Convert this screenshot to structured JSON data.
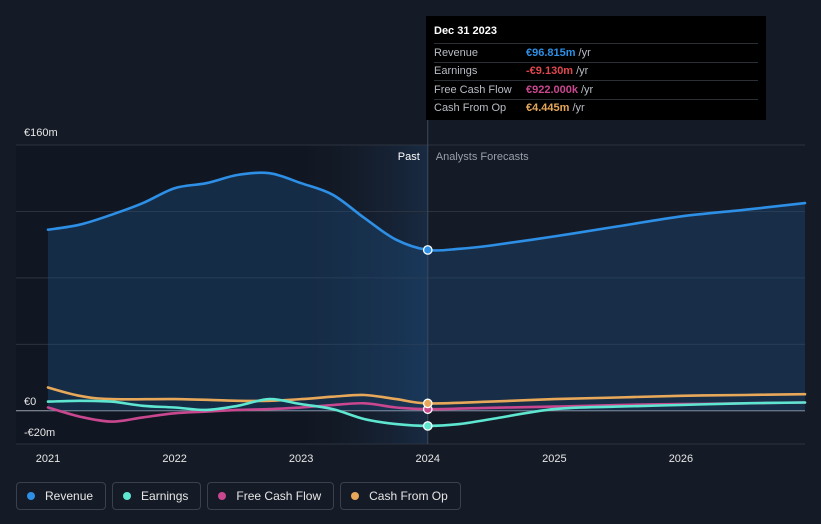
{
  "chart_data": {
    "type": "line",
    "title": "",
    "xlabel": "",
    "ylabel": "",
    "ylim": [
      -20,
      160
    ],
    "xlim": [
      2021.0,
      2026.98
    ],
    "y_ticks": [
      {
        "value": 160,
        "label": "€160m"
      },
      {
        "value": 0,
        "label": "€0"
      },
      {
        "value": -20,
        "label": "-€20m"
      }
    ],
    "x_ticks": [
      {
        "value": 2021,
        "label": "2021"
      },
      {
        "value": 2022,
        "label": "2022"
      },
      {
        "value": 2023,
        "label": "2023"
      },
      {
        "value": 2024,
        "label": "2024"
      },
      {
        "value": 2025,
        "label": "2025"
      },
      {
        "value": 2026,
        "label": "2026"
      }
    ],
    "divider_x": 2024.0,
    "past_label": "Past",
    "forecast_label": "Analysts Forecasts",
    "series": [
      {
        "name": "Revenue",
        "color": "#2d8fe6",
        "fill": true,
        "points": [
          [
            2021.0,
            109
          ],
          [
            2021.25,
            112
          ],
          [
            2021.5,
            118
          ],
          [
            2021.75,
            125
          ],
          [
            2022.0,
            134
          ],
          [
            2022.25,
            137
          ],
          [
            2022.5,
            142
          ],
          [
            2022.75,
            143
          ],
          [
            2023.0,
            137
          ],
          [
            2023.25,
            130
          ],
          [
            2023.5,
            116
          ],
          [
            2023.75,
            103
          ],
          [
            2024.0,
            96.815
          ],
          [
            2024.25,
            97.5
          ],
          [
            2024.5,
            99.5
          ],
          [
            2025.0,
            105
          ],
          [
            2025.5,
            111
          ],
          [
            2026.0,
            117
          ],
          [
            2026.5,
            121
          ],
          [
            2026.98,
            125
          ]
        ]
      },
      {
        "name": "Earnings",
        "color": "#5ee6d0",
        "fill": false,
        "points": [
          [
            2021.0,
            5.5
          ],
          [
            2021.25,
            6
          ],
          [
            2021.5,
            5.5
          ],
          [
            2021.75,
            3
          ],
          [
            2022.0,
            2
          ],
          [
            2022.25,
            0.5
          ],
          [
            2022.5,
            3
          ],
          [
            2022.75,
            7
          ],
          [
            2023.0,
            4
          ],
          [
            2023.25,
            1
          ],
          [
            2023.5,
            -5
          ],
          [
            2023.75,
            -8
          ],
          [
            2024.0,
            -9.13
          ],
          [
            2024.25,
            -8
          ],
          [
            2024.5,
            -5
          ],
          [
            2025.0,
            1
          ],
          [
            2025.5,
            2.5
          ],
          [
            2026.0,
            3.5
          ],
          [
            2026.5,
            4.5
          ],
          [
            2026.98,
            5
          ]
        ]
      },
      {
        "name": "Free Cash Flow",
        "color": "#c9478f",
        "fill": false,
        "points": [
          [
            2021.0,
            2
          ],
          [
            2021.25,
            -3.5
          ],
          [
            2021.5,
            -6.5
          ],
          [
            2021.75,
            -4
          ],
          [
            2022.0,
            -1.5
          ],
          [
            2022.25,
            -0.5
          ],
          [
            2022.5,
            0.5
          ],
          [
            2022.75,
            1
          ],
          [
            2023.0,
            2
          ],
          [
            2023.25,
            3.5
          ],
          [
            2023.5,
            4.5
          ],
          [
            2023.75,
            2
          ],
          [
            2024.0,
            0.922
          ],
          [
            2024.5,
            1.8
          ],
          [
            2025.0,
            2.5
          ],
          [
            2025.5,
            3.5
          ],
          [
            2026.0,
            4
          ],
          [
            2026.5,
            4.5
          ],
          [
            2026.98,
            5
          ]
        ]
      },
      {
        "name": "Cash From Op",
        "color": "#e8a85a",
        "fill": false,
        "points": [
          [
            2021.0,
            14
          ],
          [
            2021.25,
            9
          ],
          [
            2021.5,
            7
          ],
          [
            2022.0,
            7
          ],
          [
            2022.5,
            6
          ],
          [
            2022.75,
            6
          ],
          [
            2023.0,
            7
          ],
          [
            2023.25,
            8.5
          ],
          [
            2023.5,
            9.5
          ],
          [
            2023.75,
            7
          ],
          [
            2024.0,
            4.445
          ],
          [
            2024.5,
            5.5
          ],
          [
            2025.0,
            7
          ],
          [
            2025.5,
            8
          ],
          [
            2026.0,
            9
          ],
          [
            2026.5,
            9.5
          ],
          [
            2026.98,
            10
          ]
        ]
      }
    ]
  },
  "tooltip": {
    "date": "Dec 31 2023",
    "rows": [
      {
        "label": "Revenue",
        "value": "€96.815m",
        "unit": "/yr",
        "color": "#2d8fe6"
      },
      {
        "label": "Earnings",
        "value": "-€9.130m",
        "unit": "/yr",
        "color": "#e0474f"
      },
      {
        "label": "Free Cash Flow",
        "value": "€922.000k",
        "unit": "/yr",
        "color": "#c9478f"
      },
      {
        "label": "Cash From Op",
        "value": "€4.445m",
        "unit": "/yr",
        "color": "#e8a85a"
      }
    ]
  },
  "legend": [
    {
      "label": "Revenue",
      "color": "#2d8fe6"
    },
    {
      "label": "Earnings",
      "color": "#5ee6d0"
    },
    {
      "label": "Free Cash Flow",
      "color": "#c9478f"
    },
    {
      "label": "Cash From Op",
      "color": "#e8a85a"
    }
  ]
}
